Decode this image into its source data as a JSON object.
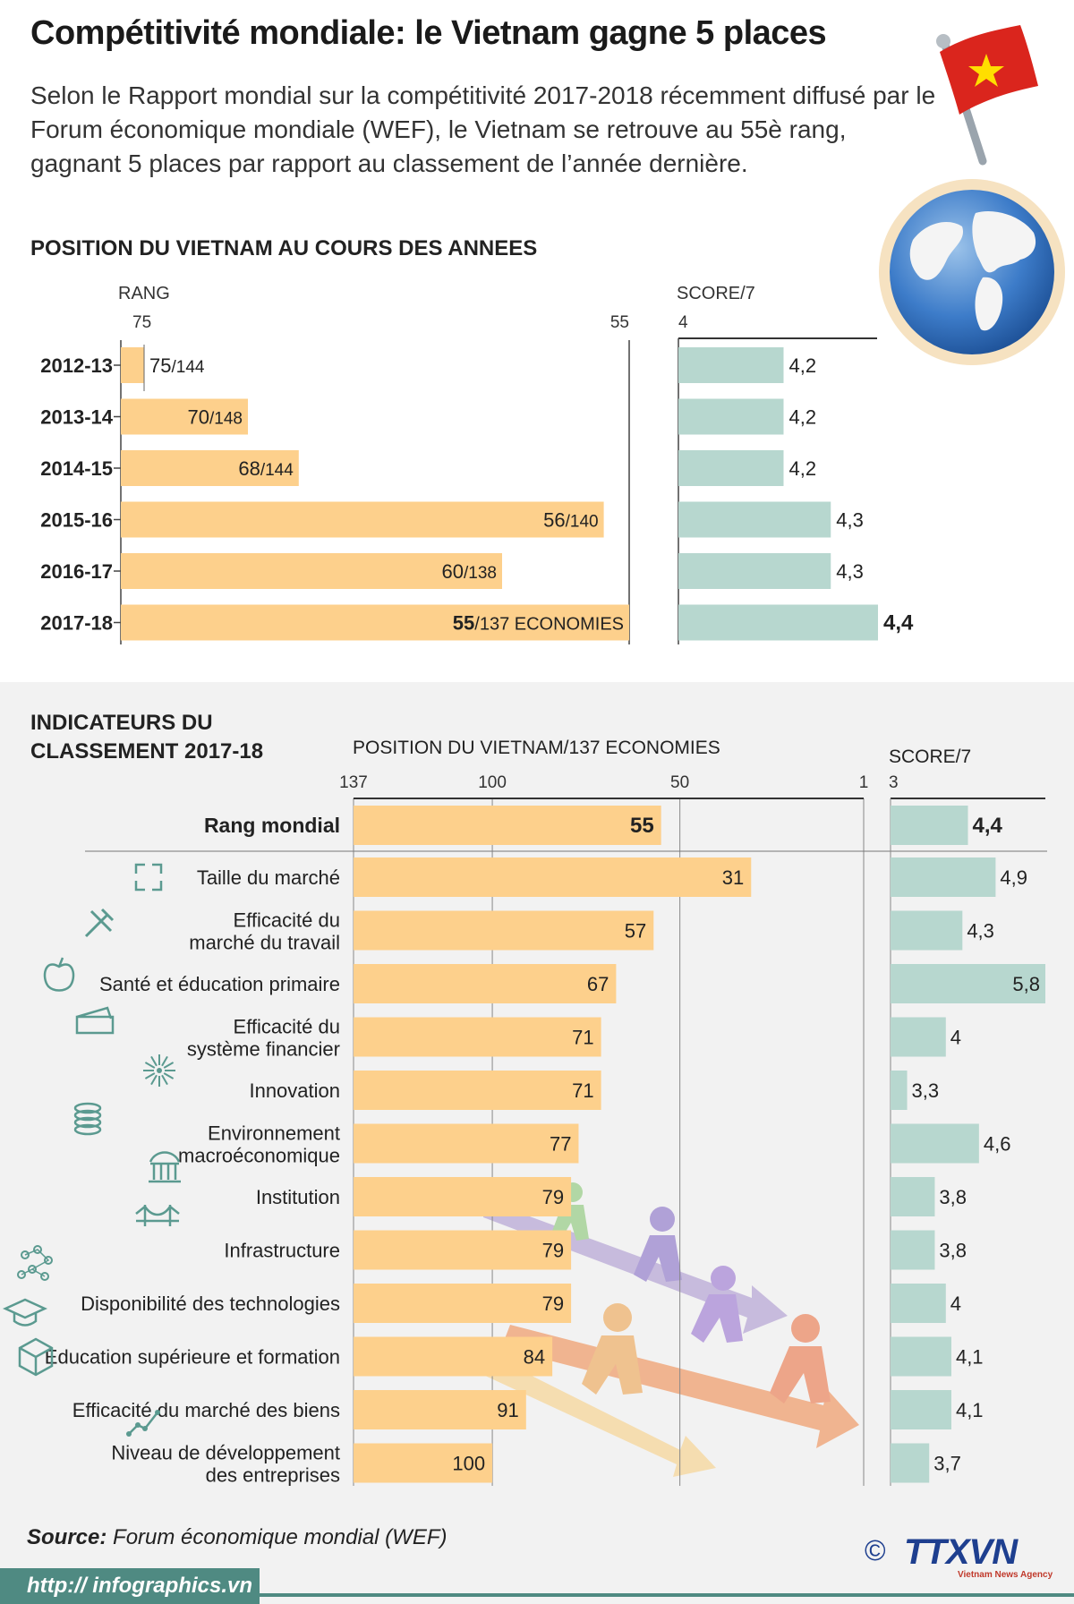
{
  "header": {
    "title": "Compétitivité mondiale: le Vietnam gagne 5 places",
    "intro": "Selon le Rapport mondial sur la compétitivité 2017-2018 récemment diffusé par le Forum économique mondiale (WEF), le Vietnam se retrouve au 55è rang, gagnant 5 places par rapport au classement de l’année dernière."
  },
  "section1": {
    "title": "POSITION DU VIETNAM AU COURS DES ANNEES",
    "rank_label": "RANG",
    "score_label": "SCORE/7"
  },
  "section2": {
    "title_line1": "INDICATEURS DU",
    "title_line2": "CLASSEMENT 2017-18",
    "position_label": "POSITION DU VIETNAM/137 ECONOMIES",
    "score_label": "SCORE/7"
  },
  "footer": {
    "source_label": "Source:",
    "source_text": "Forum économique mondial (WEF)",
    "url": "http:// infographics.vn",
    "copyright": "©",
    "brand": "TTXVN",
    "brand_sub": "Vietnam News Agency"
  },
  "colors": {
    "rank_bar": "#fdd08c",
    "score_bar": "#b7d7cf",
    "accent_teal": "#4f8a82",
    "flag_red": "#da251d",
    "flag_star": "#ffde00"
  },
  "chart_data": [
    {
      "type": "bar",
      "orientation": "horizontal",
      "categories": [
        "2012-13",
        "2013-14",
        "2014-15",
        "2015-16",
        "2016-17",
        "2017-18"
      ],
      "series": [
        {
          "values": [
            75,
            70,
            68,
            56,
            60,
            55
          ],
          "labels": [
            "75",
            "70",
            "68",
            "56",
            "60",
            "55"
          ],
          "totals": [
            "/144",
            "/148",
            "/144",
            "/140",
            "/138",
            "/137 ECONOMIES"
          ]
        }
      ],
      "xlabel": "RANG",
      "xlim": [
        75,
        55
      ],
      "xticks": [
        "75",
        "55"
      ]
    },
    {
      "type": "bar",
      "orientation": "horizontal",
      "categories": [
        "2012-13",
        "2013-14",
        "2014-15",
        "2015-16",
        "2016-17",
        "2017-18"
      ],
      "series": [
        {
          "values": [
            4.2,
            4.2,
            4.2,
            4.3,
            4.3,
            4.4
          ],
          "labels": [
            "4,2",
            "4,2",
            "4,2",
            "4,3",
            "4,3",
            "4,4"
          ]
        }
      ],
      "xlabel": "SCORE/7",
      "xlim": [
        4,
        4.4
      ],
      "xticks": [
        "4"
      ]
    },
    {
      "type": "bar",
      "orientation": "horizontal",
      "categories": [
        [
          "Rang mondial"
        ],
        [
          "Taille du marché"
        ],
        [
          "Efficacité du",
          "marché du travail"
        ],
        [
          "Santé et éducation primaire"
        ],
        [
          "Efficacité du",
          "système financier"
        ],
        [
          "Innovation"
        ],
        [
          "Environnement",
          "macroéconomique"
        ],
        [
          "Institution"
        ],
        [
          "Infrastructure"
        ],
        [
          "Disponibilité des technologies"
        ],
        [
          "Education supérieure et formation"
        ],
        [
          "Efficacité du marché des biens"
        ],
        [
          "Niveau de développement",
          "des entreprises"
        ]
      ],
      "icons": [
        "",
        "arrows-expand-icon",
        "tools-icon",
        "apple-icon",
        "wallet-icon",
        "sparkle-icon",
        "coins-icon",
        "institution-icon",
        "bridge-icon",
        "network-icon",
        "graduation-cap-icon",
        "box-icon",
        "growth-line-icon"
      ],
      "series": [
        {
          "values": [
            55,
            31,
            57,
            67,
            71,
            71,
            77,
            79,
            79,
            79,
            84,
            91,
            100
          ],
          "labels": [
            "55",
            "31",
            "57",
            "67",
            "71",
            "71",
            "77",
            "79",
            "79",
            "79",
            "84",
            "91",
            "100"
          ]
        }
      ],
      "xlabel": "POSITION DU VIETNAM/137 ECONOMIES",
      "xlim": [
        137,
        1
      ],
      "xticks": [
        "137",
        "100",
        "50",
        "1"
      ]
    },
    {
      "type": "bar",
      "orientation": "horizontal",
      "series": [
        {
          "values": [
            4.4,
            4.9,
            4.3,
            5.8,
            4.0,
            3.3,
            4.6,
            3.8,
            3.8,
            4.0,
            4.1,
            4.1,
            3.7
          ],
          "labels": [
            "4,4",
            "4,9",
            "4,3",
            "5,8",
            "4",
            "3,3",
            "4,6",
            "3,8",
            "3,8",
            "4",
            "4,1",
            "4,1",
            "3,7"
          ]
        }
      ],
      "xlabel": "SCORE/7",
      "xlim": [
        3,
        5.8
      ],
      "xticks": [
        "3"
      ]
    }
  ]
}
